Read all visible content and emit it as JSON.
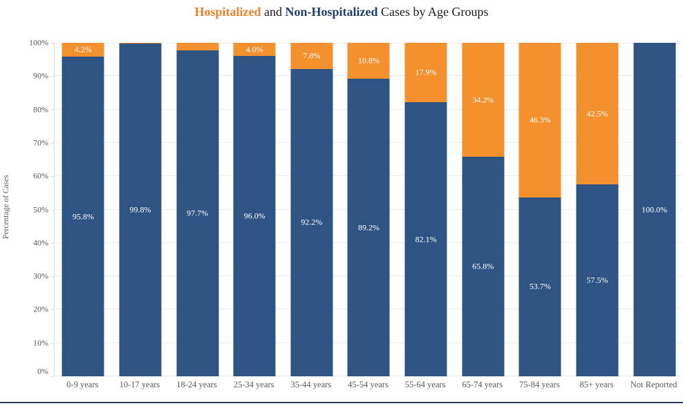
{
  "title": {
    "hospitalized": "Hospitalized",
    "and": " and ",
    "non_hospitalized": "Non-Hospitalized",
    "rest": " Cases by Age Groups"
  },
  "colors": {
    "bar_orange": "#F2912D",
    "bar_blue": "#2E5484",
    "title_orange": "#E8802F",
    "title_navy": "#1F3E6E",
    "axis_text": "#595959",
    "gridline": "#ececec",
    "bottom_rule": "#2B3D55"
  },
  "y_axis": {
    "title": "Percentage of Cases",
    "ticks": [
      "0%",
      "10%",
      "20%",
      "30%",
      "40%",
      "50%",
      "60%",
      "70%",
      "80%",
      "90%",
      "100%"
    ]
  },
  "chart_data": {
    "type": "bar",
    "stacked": true,
    "title": "Hospitalized and Non-Hospitalized Cases by Age Groups",
    "xlabel": "",
    "ylabel": "Percentage of Cases",
    "ylim": [
      0,
      100
    ],
    "ytick_step": 10,
    "grid": true,
    "legend": "none (series identified by title colors)",
    "data_label_format": "one decimal + %",
    "min_label_threshold_pct": 3,
    "categories": [
      "0-9 years",
      "10-17 years",
      "18-24 years",
      "25-34 years",
      "35-44 years",
      "45-54 years",
      "55-64 years",
      "65-74 years",
      "75-84 years",
      "85+ years",
      "Not Reported"
    ],
    "series": [
      {
        "name": "Non-Hospitalized",
        "color": "#2E5484",
        "values": [
          95.8,
          99.8,
          97.7,
          96.0,
          92.2,
          89.2,
          82.1,
          65.8,
          53.7,
          57.5,
          100.0
        ]
      },
      {
        "name": "Hospitalized",
        "color": "#F2912D",
        "values": [
          4.2,
          0.2,
          2.3,
          4.0,
          7.8,
          10.8,
          17.9,
          34.2,
          46.3,
          42.5,
          0.0
        ]
      }
    ]
  }
}
